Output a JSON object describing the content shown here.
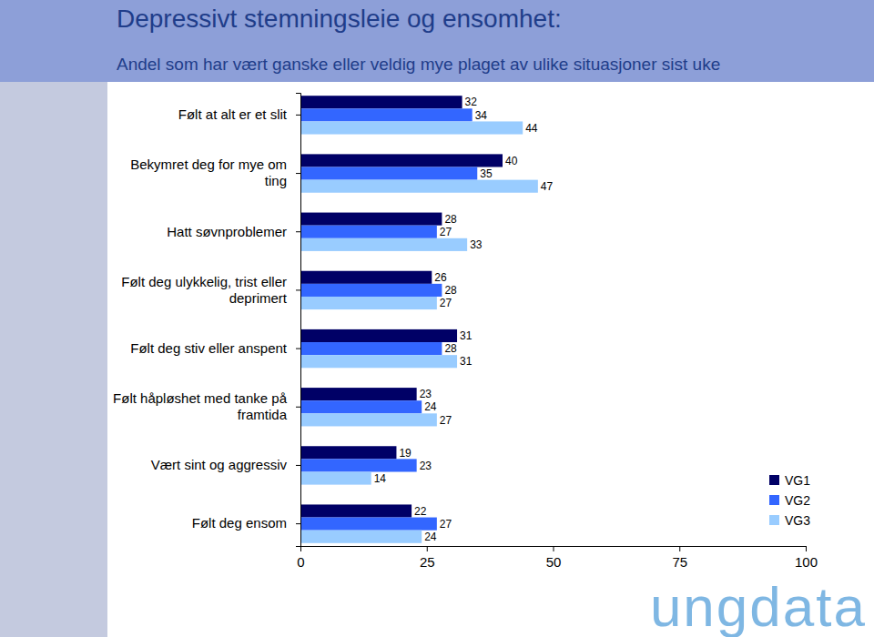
{
  "chart_data": {
    "type": "bar",
    "orientation": "horizontal",
    "title": "Depressivt stemningsleie og ensomhet:",
    "subtitle": "Andel som har vært ganske eller veldig mye plaget av ulike situasjoner sist uke",
    "annotations": [
      "ungdata"
    ],
    "categories": [
      "Følt at alt er et slit",
      "Bekymret deg for mye om ting",
      "Hatt søvnproblemer",
      "Følt deg ulykkelig, trist eller deprimert",
      "Følt deg stiv eller anspent",
      "Følt håpløshet med tanke på framtida",
      "Vært sint og aggressiv",
      "Følt deg ensom"
    ],
    "series": [
      {
        "name": "VG1",
        "color": "#000066",
        "values": [
          32,
          40,
          28,
          26,
          31,
          23,
          19,
          22
        ]
      },
      {
        "name": "VG2",
        "color": "#3366ff",
        "values": [
          34,
          35,
          27,
          28,
          28,
          24,
          23,
          27
        ]
      },
      {
        "name": "VG3",
        "color": "#99ccff",
        "values": [
          44,
          47,
          33,
          27,
          31,
          27,
          14,
          24
        ]
      }
    ],
    "xlim": [
      0,
      100
    ],
    "xticks": [
      0,
      25,
      50,
      75,
      100
    ],
    "grid": false,
    "legend": "bottom-right",
    "data_labels": true
  }
}
